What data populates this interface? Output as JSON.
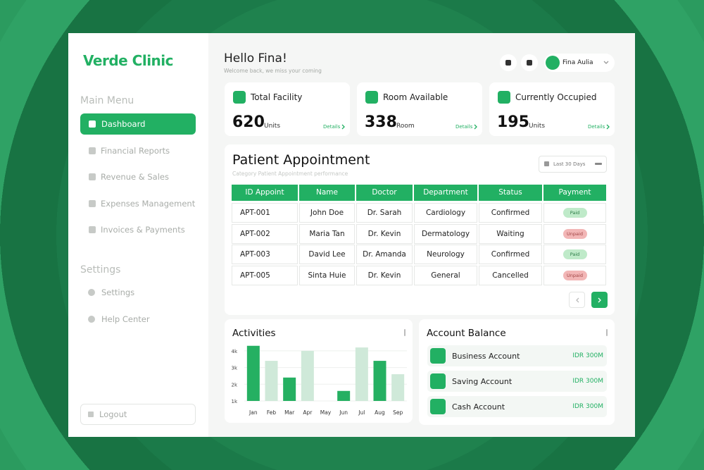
{
  "sidebar": {
    "brand": "Verde Clinic",
    "main_menu_title": "Main Menu",
    "main_menu": [
      "Dashboard",
      "Financial Reports",
      "Revenue & Sales",
      "Expenses Management",
      "Invoices & Payments"
    ],
    "settings_title": "Settings",
    "settings_menu": [
      "Settings",
      "Help Center"
    ],
    "logout": "Logout"
  },
  "header": {
    "greeting": "Hello Fina!",
    "subtitle": "Welcome back, we miss your coming",
    "user": "Fina Aulia"
  },
  "stats": [
    {
      "label": "Total Facility",
      "value": 620,
      "unit": "Units",
      "link": "Details"
    },
    {
      "label": "Room Available",
      "value": 338,
      "unit": "Room",
      "link": "Details"
    },
    {
      "label": "Currently Occupied",
      "value": 195,
      "unit": "Units",
      "link": "Details"
    }
  ],
  "appointments": {
    "title": "Patient Appointment",
    "subtitle": "Category Patient Appointment performance",
    "filter": "Last 30 Days",
    "columns": [
      "ID Appoint",
      "Name",
      "Doctor",
      "Department",
      "Status",
      "Payment"
    ],
    "rows": [
      [
        "APT-001",
        "John Doe",
        "Dr. Sarah",
        "Cardiology",
        "Confirmed",
        "Paid"
      ],
      [
        "APT-002",
        "Maria Tan",
        "Dr. Kevin",
        "Dermatology",
        "Waiting",
        "Unpaid"
      ],
      [
        "APT-003",
        "David Lee",
        "Dr. Amanda",
        "Neurology",
        "Confirmed",
        "Paid"
      ],
      [
        "APT-005",
        "Sinta Huie",
        "Dr. Kevin",
        "General",
        "Cancelled",
        "Unpaid"
      ]
    ]
  },
  "activities": {
    "type": "bar",
    "title": "Activities",
    "categories": [
      "Jan",
      "Feb",
      "Mar",
      "Apr",
      "May",
      "Jun",
      "Jul",
      "Aug",
      "Sep"
    ],
    "values": [
      4300,
      3400,
      2400,
      4000,
      null,
      1600,
      4200,
      3400,
      2600
    ],
    "colors": [
      "#25b062",
      "#cfe9d9",
      "#25b062",
      "#cfe9d9",
      "#25b062",
      "#25b062",
      "#cfe9d9",
      "#25b062",
      "#cfe9d9"
    ],
    "ylim": [
      1000,
      4500
    ],
    "yticks": [
      {
        "value": 1000,
        "label": "1k"
      },
      {
        "value": 2000,
        "label": "2k"
      },
      {
        "value": 3000,
        "label": "3k"
      },
      {
        "value": 4000,
        "label": "4k"
      }
    ],
    "grid": true
  },
  "account_balance": {
    "title": "Account Balance",
    "accounts": [
      {
        "name": "Business Account",
        "amount": "IDR 300M"
      },
      {
        "name": "Saving Account",
        "amount": "IDR 300M"
      },
      {
        "name": "Cash Account",
        "amount": "IDR 300M"
      }
    ]
  }
}
